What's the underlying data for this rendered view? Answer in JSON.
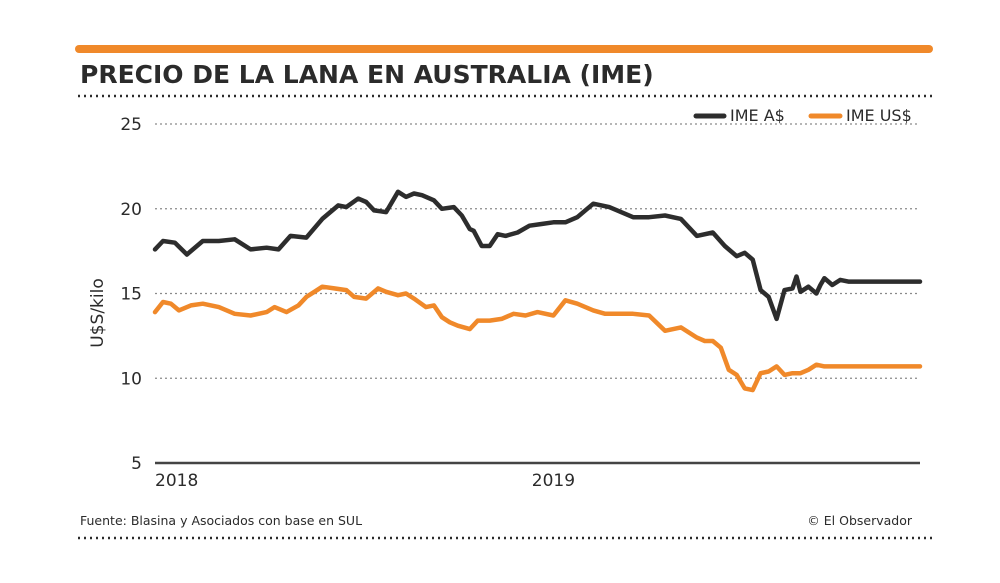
{
  "header": {
    "title": "PRECIO DE LA LANA EN AUSTRALIA (IME)",
    "accent_color": "#f0892a"
  },
  "footer": {
    "source": "Fuente: Blasina y Asociados con base en SUL",
    "credit": "© El Observador"
  },
  "chart_data": {
    "type": "line",
    "title": "PRECIO DE LA LANA EN AUSTRALIA (IME)",
    "xlabel": "",
    "ylabel": "U$S/kilo",
    "ylim": [
      5,
      25
    ],
    "yticks": [
      5,
      10,
      15,
      20,
      25
    ],
    "x_range": [
      2018.0,
      2019.92
    ],
    "x_tick_labels": [
      {
        "label": "2018",
        "x": 2018.0
      },
      {
        "label": "2019",
        "x": 2019.0
      }
    ],
    "grid": true,
    "legend_position": "top-right",
    "series": [
      {
        "name": "IME A$",
        "color": "#2d2d2d",
        "x": [
          2018.0,
          2018.02,
          2018.05,
          2018.08,
          2018.12,
          2018.16,
          2018.2,
          2018.24,
          2018.28,
          2018.31,
          2018.34,
          2018.38,
          2018.42,
          2018.46,
          2018.48,
          2018.51,
          2018.53,
          2018.55,
          2018.58,
          2018.61,
          2018.63,
          2018.65,
          2018.67,
          2018.7,
          2018.72,
          2018.75,
          2018.77,
          2018.79,
          2018.8,
          2018.82,
          2018.84,
          2018.86,
          2018.88,
          2018.91,
          2018.94,
          2018.97,
          2019.0,
          2019.03,
          2019.06,
          2019.1,
          2019.14,
          2019.16,
          2019.2,
          2019.24,
          2019.28,
          2019.32,
          2019.36,
          2019.4,
          2019.43,
          2019.46,
          2019.48,
          2019.5,
          2019.52,
          2019.54,
          2019.56,
          2019.58,
          2019.6,
          2019.61,
          2019.62,
          2019.64,
          2019.66,
          2019.67,
          2019.68,
          2019.7,
          2019.72,
          2019.74,
          2019.76,
          2019.78,
          2019.8,
          2019.82,
          2019.84,
          2019.86,
          2019.88,
          2019.9,
          2019.92
        ],
        "values": [
          17.6,
          18.1,
          18.0,
          17.3,
          18.1,
          18.1,
          18.2,
          17.6,
          17.7,
          17.6,
          18.4,
          18.3,
          19.4,
          20.2,
          20.1,
          20.6,
          20.4,
          19.9,
          19.8,
          21.0,
          20.7,
          20.9,
          20.8,
          20.5,
          20.0,
          20.1,
          19.6,
          18.8,
          18.7,
          17.8,
          17.8,
          18.5,
          18.4,
          18.6,
          19.0,
          19.1,
          19.2,
          19.2,
          19.5,
          20.3,
          20.1,
          19.9,
          19.5,
          19.5,
          19.6,
          19.4,
          18.4,
          18.6,
          17.8,
          17.2,
          17.4,
          17.0,
          15.2,
          14.8,
          13.5,
          15.2,
          15.3,
          16.0,
          15.1,
          15.4,
          15.0,
          15.5,
          15.9,
          15.5,
          15.8,
          15.7,
          15.7,
          15.7,
          15.7,
          15.7,
          15.7,
          15.7,
          15.7,
          15.7,
          15.7
        ]
      },
      {
        "name": "IME US$",
        "color": "#f0892a",
        "x": [
          2018.0,
          2018.02,
          2018.04,
          2018.06,
          2018.09,
          2018.12,
          2018.16,
          2018.2,
          2018.24,
          2018.28,
          2018.3,
          2018.33,
          2018.36,
          2018.38,
          2018.4,
          2018.42,
          2018.45,
          2018.48,
          2018.5,
          2018.53,
          2018.56,
          2018.58,
          2018.61,
          2018.63,
          2018.65,
          2018.68,
          2018.7,
          2018.72,
          2018.74,
          2018.76,
          2018.79,
          2018.81,
          2018.84,
          2018.87,
          2018.9,
          2018.93,
          2018.96,
          2019.0,
          2019.03,
          2019.06,
          2019.1,
          2019.13,
          2019.16,
          2019.2,
          2019.24,
          2019.28,
          2019.32,
          2019.36,
          2019.38,
          2019.4,
          2019.42,
          2019.44,
          2019.46,
          2019.48,
          2019.5,
          2019.52,
          2019.54,
          2019.56,
          2019.58,
          2019.6,
          2019.62,
          2019.64,
          2019.66,
          2019.68,
          2019.7,
          2019.72,
          2019.74,
          2019.76,
          2019.78,
          2019.8,
          2019.82,
          2019.84,
          2019.86,
          2019.88,
          2019.9,
          2019.92
        ],
        "values": [
          13.9,
          14.5,
          14.4,
          14.0,
          14.3,
          14.4,
          14.2,
          13.8,
          13.7,
          13.9,
          14.2,
          13.9,
          14.3,
          14.8,
          15.1,
          15.4,
          15.3,
          15.2,
          14.8,
          14.7,
          15.3,
          15.1,
          14.9,
          15.0,
          14.7,
          14.2,
          14.3,
          13.6,
          13.3,
          13.1,
          12.9,
          13.4,
          13.4,
          13.5,
          13.8,
          13.7,
          13.9,
          13.7,
          14.6,
          14.4,
          14.0,
          13.8,
          13.8,
          13.8,
          13.7,
          12.8,
          13.0,
          12.4,
          12.2,
          12.2,
          11.8,
          10.5,
          10.2,
          9.4,
          9.3,
          10.3,
          10.4,
          10.7,
          10.2,
          10.3,
          10.3,
          10.5,
          10.8,
          10.7,
          10.7,
          10.7,
          10.7,
          10.7,
          10.7,
          10.7,
          10.7,
          10.7,
          10.7,
          10.7,
          10.7,
          10.7
        ]
      }
    ]
  }
}
